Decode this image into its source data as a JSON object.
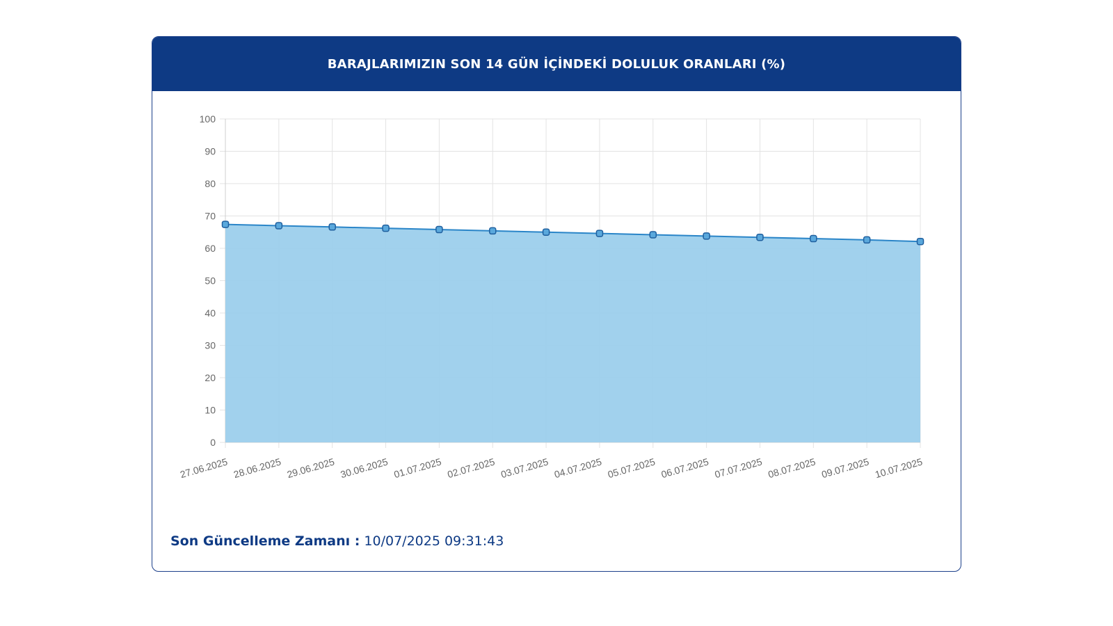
{
  "panel": {
    "title": "BARAJLARIMIZIN SON 14 GÜN İÇİNDEKİ DOLULUK ORANLARI (%)",
    "updated_label": "Son Güncelleme Zamanı :",
    "updated_value": "10/07/2025 09:31:43"
  },
  "colors": {
    "header_bg": "#0e3a84",
    "line": "#2a85c8",
    "fill": "#9ccfec",
    "marker_fill": "#5aa8dc",
    "marker_stroke": "#1f5f9e"
  },
  "chart_data": {
    "type": "area",
    "categories": [
      "27.06.2025",
      "28.06.2025",
      "29.06.2025",
      "30.06.2025",
      "01.07.2025",
      "02.07.2025",
      "03.07.2025",
      "04.07.2025",
      "05.07.2025",
      "06.07.2025",
      "07.07.2025",
      "08.07.2025",
      "09.07.2025",
      "10.07.2025"
    ],
    "values": [
      67.4,
      67.0,
      66.6,
      66.2,
      65.8,
      65.4,
      65.0,
      64.6,
      64.2,
      63.8,
      63.4,
      63.0,
      62.6,
      62.1
    ],
    "ylim": [
      0,
      100
    ],
    "yticks": [
      0,
      10,
      20,
      30,
      40,
      50,
      60,
      70,
      80,
      90,
      100
    ],
    "grid": true,
    "legend": "none"
  }
}
